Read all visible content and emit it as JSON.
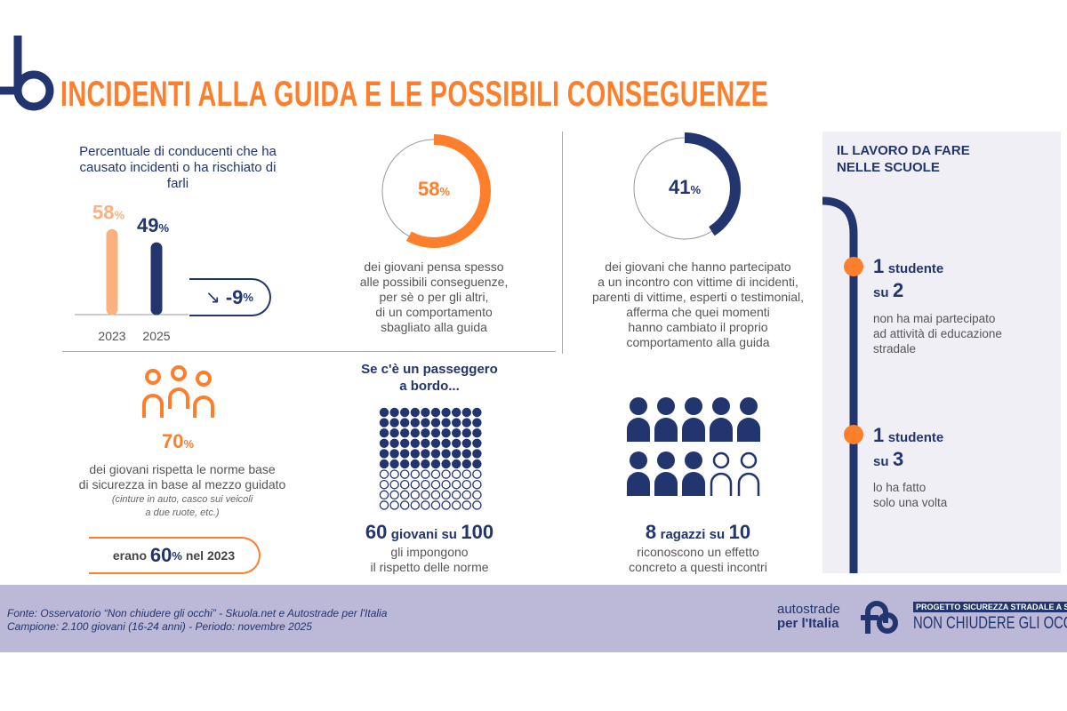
{
  "header": {
    "title": "INCIDENTI ALLA GUIDA E LE POSSIBILI CONSEGUENZE"
  },
  "colors": {
    "navy": "#22356f",
    "orange": "#fd7f2c",
    "light_orange": "#fbb080",
    "footer": "#bcb9d8",
    "panel": "#f0eff6"
  },
  "chart_data": [
    {
      "type": "bar",
      "title": "Percentuale di conducenti che ha causato incidenti o ha rischiato di farli",
      "categories": [
        "2023",
        "2025"
      ],
      "values": [
        58,
        49
      ],
      "labels": [
        "58",
        "49"
      ],
      "unit": "%",
      "ylim": [
        0,
        100
      ],
      "change": "-9",
      "change_unit": "%"
    },
    {
      "type": "pie",
      "subtype": "donut",
      "value": 58,
      "label": "58",
      "unit": "%",
      "text": [
        "dei giovani pensa spesso",
        "alle possibili conseguenze,",
        "per sè o per gli altri,",
        "di un comportamento",
        "sbagliato alla guida"
      ]
    },
    {
      "type": "pie",
      "subtype": "donut",
      "value": 41,
      "label": "41",
      "unit": "%",
      "text": [
        "dei giovani che hanno partecipato",
        "a un incontro con vittime di incidenti,",
        "parenti di vittime, esperti o testimonial,",
        "afferma che quei momenti",
        "hanno cambiato il proprio",
        "comportamento alla guida"
      ]
    }
  ],
  "norms": {
    "value": "70",
    "unit": "%",
    "text": [
      "dei giovani rispetta le norme base",
      "di sicurezza in base al mezzo guidato"
    ],
    "note": [
      "(cinture in auto, casco sui veicoli",
      "a due ruote, etc.)"
    ],
    "prev_pre": "erano",
    "prev_value": "60",
    "prev_unit": "%",
    "prev_post": "nel 2023"
  },
  "passenger": {
    "heading": [
      "Se c'è un passeggero",
      "a bordo..."
    ],
    "filled": 60,
    "total": 100,
    "num": "60",
    "mid": "giovani su",
    "den": "100",
    "text": [
      "gli impongono",
      "il rispetto delle norme"
    ]
  },
  "meetings": {
    "filled": 8,
    "total": 10,
    "num": "8",
    "mid": "ragazzi su",
    "den": "10",
    "text": [
      "riconoscono un effetto",
      "concreto a questi incontri"
    ]
  },
  "schools": {
    "title": [
      "IL LAVORO DA FARE",
      "NELLE SCUOLE"
    ],
    "items": [
      {
        "num": "1",
        "word": "studente",
        "su": "su",
        "den": "2",
        "text": [
          "non ha mai partecipato",
          "ad attività di educazione",
          "stradale"
        ]
      },
      {
        "num": "1",
        "word": "studente",
        "su": "su",
        "den": "3",
        "text": [
          "lo ha fatto",
          "solo una volta"
        ]
      }
    ]
  },
  "footer": {
    "source": "Fonte: Osservatorio “Non chiudere gli occhi” - Skuola.net e Autostrade per l'Italia",
    "sample": "Campione: 2.100 giovani (16-24 anni) - Periodo: novembre 2025",
    "brand1": "autostrade",
    "brand2": "per l'Italia",
    "project": "PROGETTO SICUREZZA STRADALE A SCUOLA",
    "campaign": "NON CHIUDERE GLI OCCHI"
  }
}
